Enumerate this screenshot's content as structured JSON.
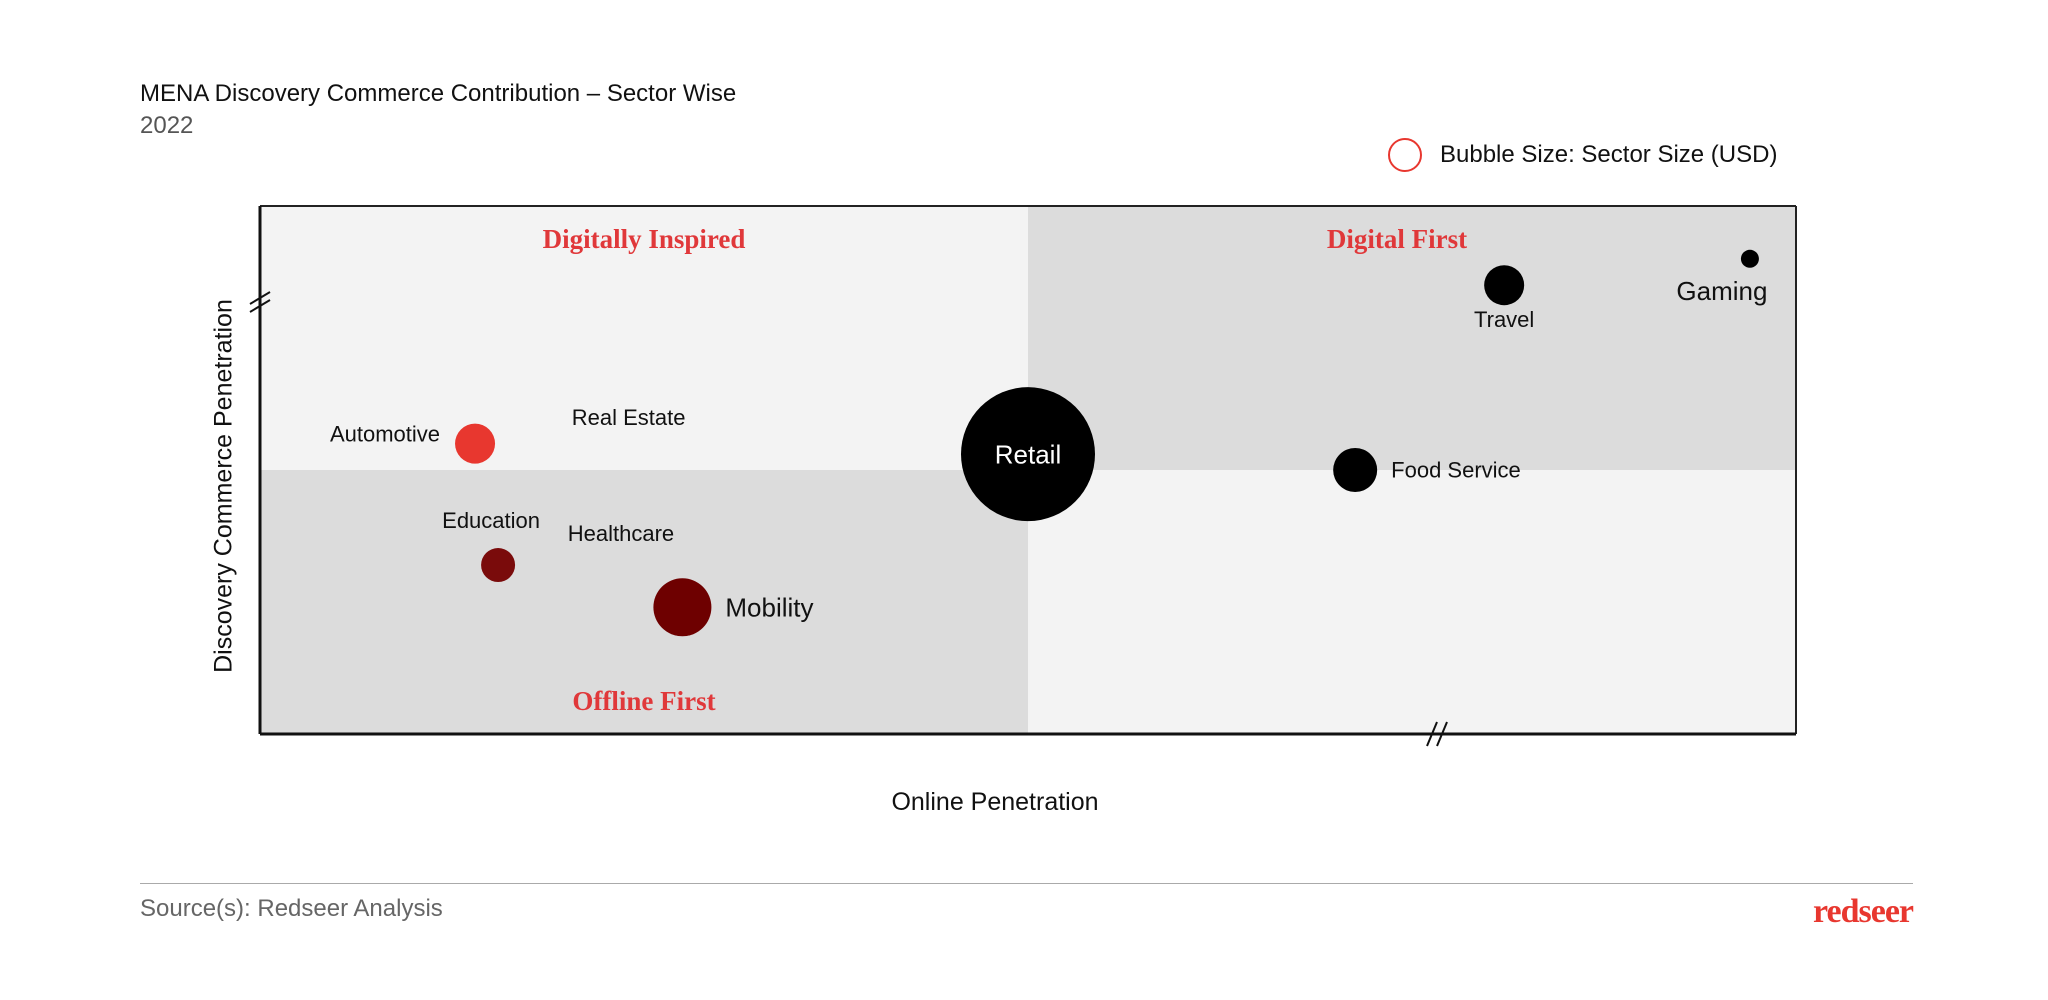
{
  "chart_data": {
    "type": "scatter",
    "title": "MENA Discovery Commerce Contribution – Sector Wise",
    "subtitle": "2022",
    "xlabel": "Online Penetration",
    "ylabel": "Discovery Commerce Penetration",
    "xlim": [
      0,
      100
    ],
    "ylim": [
      0,
      100
    ],
    "axis_breaks": [
      "x",
      "y"
    ],
    "grid": false,
    "legend": {
      "label": "Bubble Size: Sector Size (USD)",
      "placement": "top-right",
      "color": "#e8372f"
    },
    "quadrants": [
      {
        "label": "Digitally Inspired",
        "position": "top-left",
        "fill": "#f3f3f3"
      },
      {
        "label": "Digital First",
        "position": "top-right",
        "fill": "#dcdcdc"
      },
      {
        "label": "Offline First",
        "position": "bottom-left",
        "fill": "#dcdcdc"
      },
      {
        "label": "",
        "position": "bottom-right",
        "fill": "#f3f3f3"
      }
    ],
    "quadrant_label_color": "#e0383a",
    "points": [
      {
        "name": "Automotive",
        "x": 14,
        "y": 55,
        "size": 20,
        "color": "#e8372f",
        "label_side": "left"
      },
      {
        "name": "Real Estate",
        "x": 24,
        "y": 60,
        "size": 0,
        "color": "#000000",
        "label_side": "center"
      },
      {
        "name": "Education",
        "x": 15.5,
        "y": 32,
        "size": 17,
        "color": "#7a0b0b",
        "label_side": "above"
      },
      {
        "name": "Healthcare",
        "x": 23.5,
        "y": 38,
        "size": 0,
        "color": "#000000",
        "label_side": "center"
      },
      {
        "name": "Mobility",
        "x": 27.5,
        "y": 24,
        "size": 29,
        "color": "#6e0000",
        "label_side": "right"
      },
      {
        "name": "Retail",
        "x": 50,
        "y": 53,
        "size": 67,
        "color": "#000000",
        "label_side": "inside"
      },
      {
        "name": "Food Service",
        "x": 71.3,
        "y": 50,
        "size": 22,
        "color": "#000000",
        "label_side": "right"
      },
      {
        "name": "Travel",
        "x": 81,
        "y": 85,
        "size": 20,
        "color": "#000000",
        "label_side": "below"
      },
      {
        "name": "Gaming",
        "x": 97,
        "y": 90,
        "size": 9,
        "color": "#000000",
        "label_side": "below-left"
      }
    ]
  },
  "footer": {
    "source": "Source(s): Redseer Analysis",
    "logo": "redseer"
  }
}
